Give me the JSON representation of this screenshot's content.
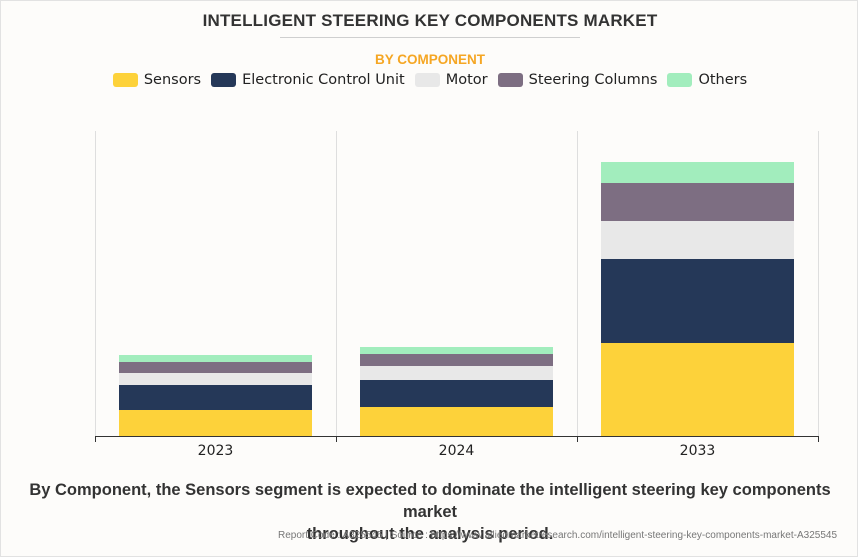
{
  "header": {
    "title": "INTELLIGENT STEERING KEY COMPONENTS MARKET",
    "subtitle": "BY COMPONENT"
  },
  "chart_data": {
    "type": "bar",
    "stacked": true,
    "title": "INTELLIGENT STEERING KEY COMPONENTS MARKET",
    "subtitle": "BY COMPONENT",
    "xlabel": "",
    "ylabel": "",
    "categories": [
      "2023",
      "2024",
      "2033"
    ],
    "series": [
      {
        "name": "Sensors",
        "color": "#fdd23a",
        "values": [
          26,
          29,
          93
        ]
      },
      {
        "name": "Electronic Control Unit",
        "color": "#253858",
        "values": [
          25,
          27,
          84
        ]
      },
      {
        "name": "Motor",
        "color": "#e8e8e8",
        "values": [
          12,
          14,
          38
        ]
      },
      {
        "name": "Steering Columns",
        "color": "#7d6e82",
        "values": [
          11,
          12,
          38
        ]
      },
      {
        "name": "Others",
        "color": "#a2edbd",
        "values": [
          7,
          7,
          21
        ]
      }
    ],
    "ylim": [
      0,
      305
    ],
    "y_axis_visible": false,
    "grid": "vertical category separators",
    "legend_position": "top-center"
  },
  "footer": {
    "summary_line1": "By Component, the Sensors segment is expected to dominate the intelligent steering key components market",
    "summary_line2": "throughout the analysis period.",
    "source": "Report Code : A325545  |  Source : https://www.alliedmarketresearch.com/intelligent-steering-key-components-market-A325545"
  }
}
